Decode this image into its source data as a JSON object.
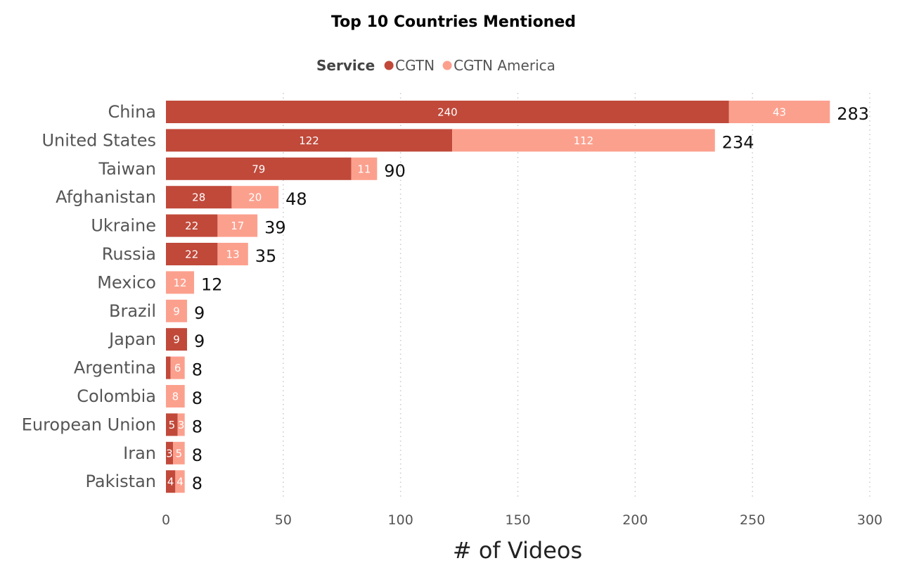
{
  "chart_data": {
    "type": "bar",
    "orientation": "horizontal",
    "stacked": true,
    "title": "Top 10 Countries Mentioned",
    "legend_title": "Service",
    "legend_position": "top",
    "xlabel": "# of Videos",
    "ylabel": "",
    "xlim": [
      0,
      300
    ],
    "xticks": [
      0,
      50,
      100,
      150,
      200,
      250,
      300
    ],
    "grid": "vertical-dotted",
    "categories": [
      "China",
      "United States",
      "Taiwan",
      "Afghanistan",
      "Ukraine",
      "Russia",
      "Mexico",
      "Brazil",
      "Japan",
      "Argentina",
      "Colombia",
      "European Union",
      "Iran",
      "Pakistan"
    ],
    "series": [
      {
        "name": "CGTN",
        "color": "#c0493a",
        "values": [
          240,
          122,
          79,
          28,
          22,
          22,
          0,
          0,
          9,
          2,
          0,
          5,
          3,
          4
        ],
        "value_labels": [
          "240",
          "122",
          "79",
          "28",
          "22",
          "22",
          "",
          "",
          "9",
          "",
          "",
          "5",
          "3",
          "4"
        ]
      },
      {
        "name": "CGTN America",
        "color": "#fca08e",
        "values": [
          43,
          112,
          11,
          20,
          17,
          13,
          12,
          9,
          0,
          6,
          8,
          3,
          5,
          4
        ],
        "value_labels": [
          "43",
          "112",
          "11",
          "20",
          "17",
          "13",
          "12",
          "9",
          "",
          "6",
          "8",
          "3",
          "5",
          "4"
        ]
      }
    ],
    "totals": [
      "283",
      "234",
      "90",
      "48",
      "39",
      "35",
      "12",
      "9",
      "9",
      "8",
      "8",
      "8",
      "8",
      "8"
    ]
  }
}
